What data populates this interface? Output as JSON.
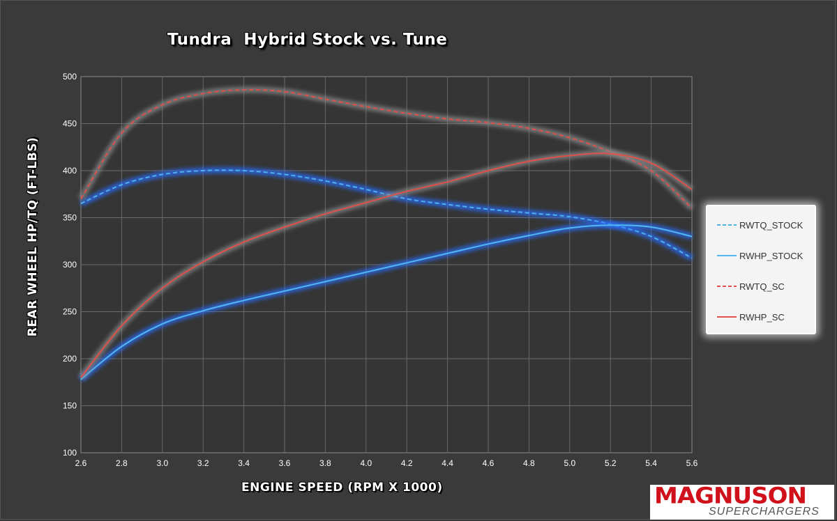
{
  "chart_data": {
    "type": "line",
    "title": "Tundra  Hybrid Stock vs. Tune",
    "xlabel": "ENGINE SPEED (RPM X 1000)",
    "ylabel": "REAR WHEEL HP/TQ (FT-LBS)",
    "xlim": [
      2.6,
      5.6
    ],
    "ylim": [
      100,
      500
    ],
    "x_ticks": [
      "2.6",
      "2.8",
      "3.0",
      "3.2",
      "3.4",
      "3.6",
      "3.8",
      "4.0",
      "4.2",
      "4.4",
      "4.6",
      "4.8",
      "5.0",
      "5.2",
      "5.4",
      "5.6"
    ],
    "y_ticks": [
      "100",
      "150",
      "200",
      "250",
      "300",
      "350",
      "400",
      "450",
      "500"
    ],
    "grid": true,
    "legend_position": "right",
    "series": [
      {
        "name": "RWTQ_STOCK",
        "color": "#4fb0e8",
        "glow": "#2a6cff",
        "dashed": true,
        "x": [
          2.6,
          2.8,
          3.0,
          3.2,
          3.4,
          3.6,
          3.8,
          4.0,
          4.2,
          4.4,
          4.6,
          4.8,
          5.0,
          5.2,
          5.4,
          5.6
        ],
        "y": [
          365,
          385,
          396,
          400,
          400,
          396,
          389,
          380,
          370,
          364,
          359,
          355,
          351,
          343,
          330,
          307
        ]
      },
      {
        "name": "RWHP_STOCK",
        "color": "#52b8f0",
        "glow": "#2a6cff",
        "dashed": false,
        "x": [
          2.6,
          2.8,
          3.0,
          3.2,
          3.4,
          3.6,
          3.8,
          4.0,
          4.2,
          4.4,
          4.6,
          4.8,
          5.0,
          5.2,
          5.4,
          5.6
        ],
        "y": [
          178,
          213,
          237,
          251,
          262,
          272,
          282,
          292,
          302,
          312,
          322,
          331,
          339,
          342,
          340,
          330
        ]
      },
      {
        "name": "RWTQ_SC",
        "color": "#e0504a",
        "glow": "#8a8a8a",
        "dashed": true,
        "x": [
          2.6,
          2.8,
          3.0,
          3.2,
          3.4,
          3.6,
          3.8,
          4.0,
          4.2,
          4.4,
          4.6,
          4.8,
          5.0,
          5.2,
          5.4,
          5.6
        ],
        "y": [
          370,
          440,
          470,
          482,
          486,
          484,
          476,
          468,
          461,
          455,
          451,
          445,
          435,
          420,
          400,
          360
        ]
      },
      {
        "name": "RWHP_SC",
        "color": "#e0504a",
        "glow": "#8a8a8a",
        "dashed": false,
        "x": [
          2.6,
          2.8,
          3.0,
          3.2,
          3.4,
          3.6,
          3.8,
          4.0,
          4.2,
          4.4,
          4.6,
          4.8,
          5.0,
          5.2,
          5.4,
          5.6
        ],
        "y": [
          180,
          235,
          275,
          303,
          324,
          340,
          354,
          366,
          378,
          388,
          400,
          410,
          416,
          418,
          408,
          380
        ]
      }
    ]
  },
  "logo": {
    "main": "MAGNUSON",
    "sub": "SUPERCHARGERS"
  }
}
